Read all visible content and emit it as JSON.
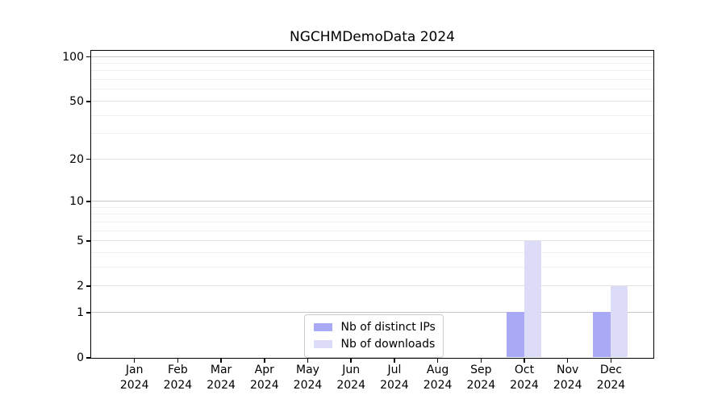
{
  "chart_data": {
    "type": "bar",
    "title": "NGCHMDemoData 2024",
    "categories": [
      "Jan",
      "Feb",
      "Mar",
      "Apr",
      "May",
      "Jun",
      "Jul",
      "Aug",
      "Sep",
      "Oct",
      "Nov",
      "Dec"
    ],
    "category_year": "2024",
    "series": [
      {
        "name": "Nb of distinct IPs",
        "color": "#a9a9f5",
        "values": [
          0,
          0,
          0,
          0,
          0,
          0,
          0,
          0,
          0,
          1,
          0,
          1
        ]
      },
      {
        "name": "Nb of downloads",
        "color": "#dcdcf9",
        "values": [
          0,
          0,
          0,
          0,
          0,
          0,
          0,
          0,
          0,
          5,
          0,
          2
        ]
      }
    ],
    "yscale": "log1p",
    "ylim": [
      0,
      110
    ],
    "yticks": [
      0,
      1,
      2,
      5,
      10,
      20,
      50,
      100
    ],
    "grid": {
      "major": [
        1,
        10,
        100
      ],
      "mid": [
        2,
        5,
        20,
        50
      ],
      "minor": [
        3,
        4,
        6,
        7,
        8,
        9,
        30,
        40,
        60,
        70,
        80,
        90
      ]
    },
    "legend": {
      "position": "lower center",
      "entries": [
        "Nb of distinct IPs",
        "Nb of downloads"
      ]
    },
    "colors": {
      "background": "#ffffff",
      "axis": "#000000",
      "text": "#000000",
      "grid_major": "#c6c6c6",
      "grid_mid": "#e2e2e2",
      "grid_minor": "#efefef",
      "legend_border": "#cccccc"
    }
  }
}
